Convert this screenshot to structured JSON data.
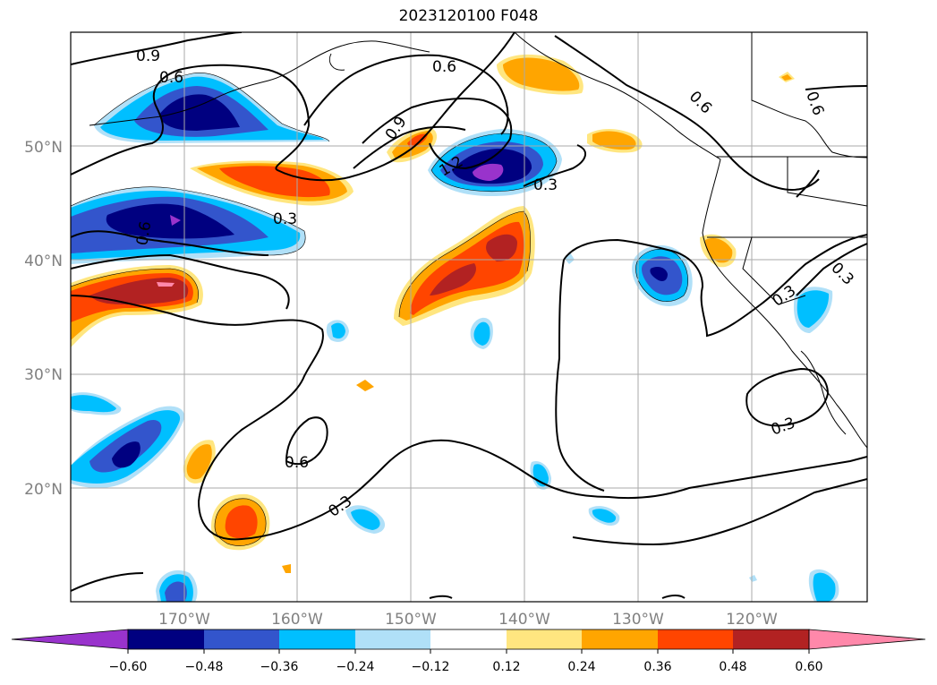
{
  "title": "2023120100 F048",
  "axes": {
    "lat_labels": [
      "50°N",
      "40°N",
      "30°N",
      "20°N"
    ],
    "lon_labels": [
      "170°W",
      "160°W",
      "150°W",
      "140°W",
      "130°W",
      "120°W"
    ]
  },
  "colorbar": {
    "ticks": [
      "−0.60",
      "−0.48",
      "−0.36",
      "−0.24",
      "−0.12",
      "0.12",
      "0.24",
      "0.36",
      "0.48",
      "0.60"
    ],
    "colors": [
      "#9933cc",
      "#000080",
      "#3355cc",
      "#00bfff",
      "#b0e0f8",
      "#ffffff",
      "#ffe680",
      "#ffa500",
      "#ff4500",
      "#b22222",
      "#ff88aa"
    ]
  },
  "contour_labels": [
    "0.9",
    "0.6",
    "0.6",
    "0.6",
    "0.9",
    "1.2",
    "0.3",
    "0.3",
    "0.6",
    "0.6",
    "0.3",
    "0.3",
    "0.3",
    "0.6",
    "0.3"
  ]
}
